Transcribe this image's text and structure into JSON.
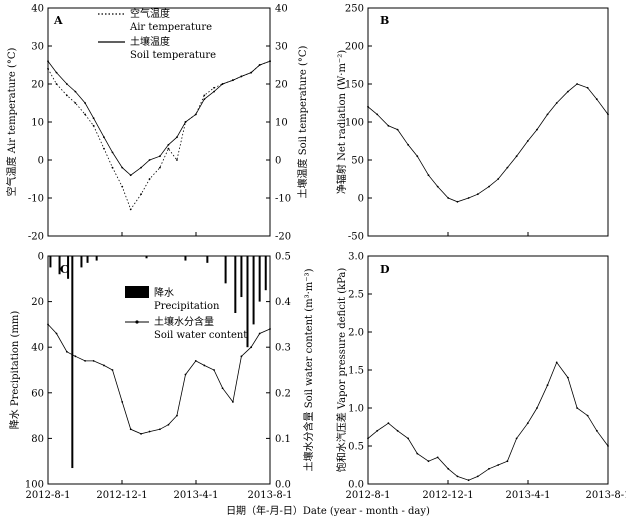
{
  "xlabel": "日期（年-月-日）Date (year - month - day)",
  "x_ticks": [
    "2012-8-1",
    "2012-12-1",
    "2013-4-1",
    "2013-8-1"
  ],
  "chart_data": [
    {
      "id": "A",
      "type": "line",
      "label": "A",
      "ylabel_left": "空气温度 Air temperature (°C)",
      "ylabel_right": "土壤温度 Soil temperature (°C)",
      "ylim": [
        -20,
        40
      ],
      "yticks": [
        -20,
        -10,
        0,
        10,
        20,
        30,
        40
      ],
      "legend": {
        "position": "top-center"
      },
      "series": [
        {
          "name": "空气温度",
          "name_en": "Air temperature",
          "style": "dotted",
          "x": [
            "2012-08-01",
            "2012-08-15",
            "2012-09-01",
            "2012-09-15",
            "2012-10-01",
            "2012-10-15",
            "2012-11-01",
            "2012-11-15",
            "2012-12-01",
            "2012-12-15",
            "2013-01-01",
            "2013-01-15",
            "2013-02-01",
            "2013-02-15",
            "2013-03-01",
            "2013-03-15",
            "2013-04-01",
            "2013-04-15",
            "2013-05-01",
            "2013-05-15",
            "2013-06-01",
            "2013-06-15",
            "2013-07-01",
            "2013-07-15",
            "2013-08-01"
          ],
          "y": [
            24,
            20,
            17,
            15,
            12,
            9,
            3,
            -2,
            -7,
            -13,
            -9,
            -5,
            -2,
            3,
            0,
            10,
            12,
            17,
            19,
            20,
            21,
            22,
            23,
            25,
            26
          ]
        },
        {
          "name": "土壤温度",
          "name_en": "Soil temperature",
          "style": "solid",
          "x": [
            "2012-08-01",
            "2012-08-15",
            "2012-09-01",
            "2012-09-15",
            "2012-10-01",
            "2012-10-15",
            "2012-11-01",
            "2012-11-15",
            "2012-12-01",
            "2012-12-15",
            "2013-01-01",
            "2013-01-15",
            "2013-02-01",
            "2013-02-15",
            "2013-03-01",
            "2013-03-15",
            "2013-04-01",
            "2013-04-15",
            "2013-05-01",
            "2013-05-15",
            "2013-06-01",
            "2013-06-15",
            "2013-07-01",
            "2013-07-15",
            "2013-08-01"
          ],
          "y": [
            26,
            23,
            20,
            18,
            15,
            11,
            6,
            2,
            -2,
            -4,
            -2,
            0,
            1,
            4,
            6,
            10,
            12,
            16,
            18,
            20,
            21,
            22,
            23,
            25,
            26
          ]
        }
      ]
    },
    {
      "id": "B",
      "type": "line",
      "label": "B",
      "ylabel_left": "净辐射 Net radiation (W·m⁻²)",
      "ylim": [
        -50,
        250
      ],
      "yticks": [
        -50,
        0,
        50,
        100,
        150,
        200,
        250
      ],
      "series": [
        {
          "style": "solid",
          "x": [
            "2012-08-01",
            "2012-08-15",
            "2012-09-01",
            "2012-09-15",
            "2012-10-01",
            "2012-10-15",
            "2012-11-01",
            "2012-11-15",
            "2012-12-01",
            "2012-12-15",
            "2013-01-01",
            "2013-01-15",
            "2013-02-01",
            "2013-02-15",
            "2013-03-01",
            "2013-03-15",
            "2013-04-01",
            "2013-04-15",
            "2013-05-01",
            "2013-05-15",
            "2013-06-01",
            "2013-06-15",
            "2013-07-01",
            "2013-07-15",
            "2013-08-01"
          ],
          "y": [
            120,
            110,
            95,
            90,
            70,
            55,
            30,
            15,
            0,
            -5,
            0,
            5,
            15,
            25,
            40,
            55,
            75,
            90,
            110,
            125,
            140,
            150,
            145,
            130,
            110
          ]
        }
      ]
    },
    {
      "id": "C",
      "type": "bar+line",
      "label": "C",
      "ylabel_left": "降水 Precipitation (mm)",
      "ylabel_right": "土壤水分含量 Soil water content (m³·m⁻³)",
      "ylim_left": [
        100,
        0
      ],
      "yticks_left": [
        0,
        20,
        40,
        60,
        80,
        100
      ],
      "ylim_right": [
        0,
        0.5
      ],
      "yticks_right": [
        "0.0",
        "0.1",
        "0.2",
        "0.3",
        "0.4",
        "0.5"
      ],
      "legend": {
        "position": "top-center"
      },
      "series": [
        {
          "name": "降水",
          "name_en": "Precipitation",
          "type": "bar",
          "x": [
            "2012-08-05",
            "2012-08-20",
            "2012-09-03",
            "2012-09-10",
            "2012-09-25",
            "2012-10-05",
            "2012-10-20",
            "2013-01-10",
            "2013-03-15",
            "2013-04-20",
            "2013-05-20",
            "2013-06-05",
            "2013-06-15",
            "2013-06-25",
            "2013-07-05",
            "2013-07-15",
            "2013-07-25"
          ],
          "y": [
            5,
            8,
            10,
            93,
            5,
            3,
            2,
            1,
            2,
            3,
            12,
            25,
            18,
            40,
            30,
            20,
            15
          ]
        },
        {
          "name": "土壤水分含量",
          "name_en": "Soil water content",
          "type": "line",
          "x": [
            "2012-08-01",
            "2012-08-15",
            "2012-09-01",
            "2012-09-15",
            "2012-10-01",
            "2012-10-15",
            "2012-11-01",
            "2012-11-15",
            "2012-12-01",
            "2012-12-15",
            "2013-01-01",
            "2013-01-15",
            "2013-02-01",
            "2013-02-15",
            "2013-03-01",
            "2013-03-15",
            "2013-04-01",
            "2013-04-15",
            "2013-05-01",
            "2013-05-15",
            "2013-06-01",
            "2013-06-15",
            "2013-07-01",
            "2013-07-15",
            "2013-08-01"
          ],
          "y": [
            0.35,
            0.33,
            0.29,
            0.28,
            0.27,
            0.27,
            0.26,
            0.25,
            0.18,
            0.12,
            0.11,
            0.115,
            0.12,
            0.13,
            0.15,
            0.24,
            0.27,
            0.26,
            0.25,
            0.21,
            0.18,
            0.28,
            0.3,
            0.33,
            0.34
          ]
        }
      ]
    },
    {
      "id": "D",
      "type": "line",
      "label": "D",
      "ylabel_left": "饱和水汽压差 Vapor pressure deficit (kPa)",
      "ylim": [
        0.0,
        3.0
      ],
      "yticks": [
        "0.0",
        "0.5",
        "1.0",
        "1.5",
        "2.0",
        "2.5",
        "3.0"
      ],
      "series": [
        {
          "style": "solid",
          "x": [
            "2012-08-01",
            "2012-08-15",
            "2012-09-01",
            "2012-09-15",
            "2012-10-01",
            "2012-10-15",
            "2012-11-01",
            "2012-11-15",
            "2012-12-01",
            "2012-12-15",
            "2013-01-01",
            "2013-01-15",
            "2013-02-01",
            "2013-02-15",
            "2013-03-01",
            "2013-03-15",
            "2013-04-01",
            "2013-04-15",
            "2013-05-01",
            "2013-05-15",
            "2013-06-01",
            "2013-06-15",
            "2013-07-01",
            "2013-07-15",
            "2013-08-01"
          ],
          "y": [
            0.6,
            0.7,
            0.8,
            0.7,
            0.6,
            0.4,
            0.3,
            0.35,
            0.2,
            0.1,
            0.05,
            0.1,
            0.2,
            0.25,
            0.3,
            0.6,
            0.8,
            1.0,
            1.3,
            1.6,
            1.4,
            1.0,
            0.9,
            0.7,
            0.5
          ]
        }
      ]
    }
  ]
}
